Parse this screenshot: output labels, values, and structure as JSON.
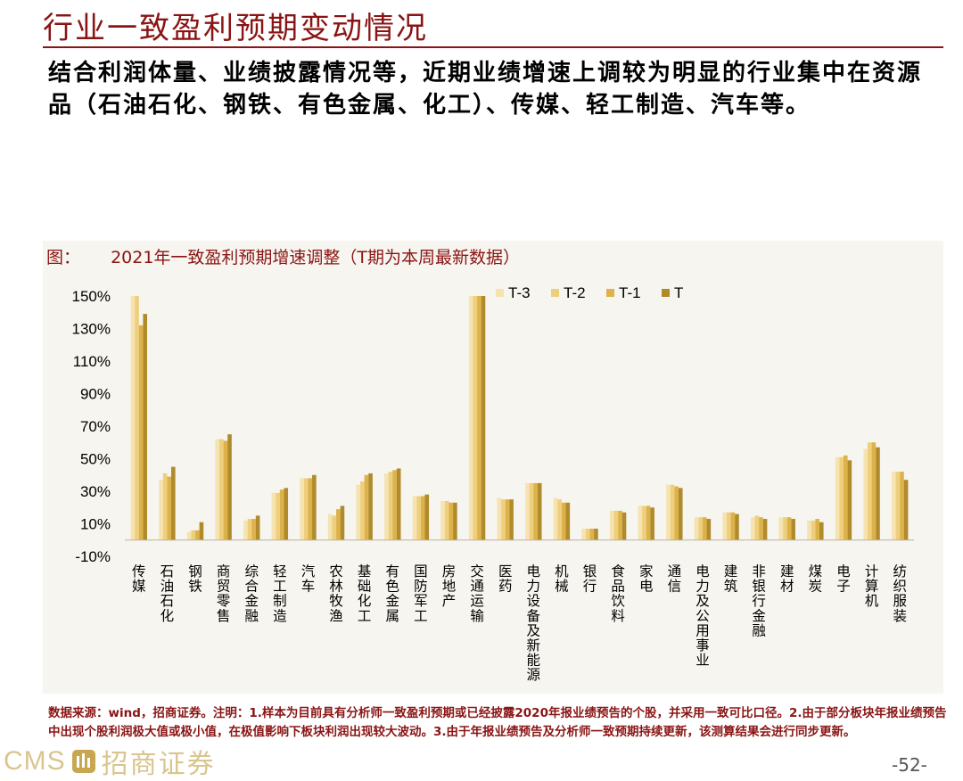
{
  "title": "行业一致盈利预期变动情况",
  "subtitle": "结合利润体量、业绩披露情况等，近期业绩增速上调较为明显的行业集中在资源品（石油石化、钢铁、有色金属、化工）、传媒、轻工制造、汽车等。",
  "chart_caption": {
    "label": "图：",
    "text": "2021年一致盈利预期增速调整（T期为本周最新数据）"
  },
  "colors": {
    "T-3": "#f6e3b0",
    "T-2": "#edcf7e",
    "T-1": "#ddb24a",
    "T": "#b08b2c",
    "title": "#8a1414",
    "panel": "#f7f5ef"
  },
  "chart_data": {
    "type": "bar",
    "ylim": [
      -10,
      150
    ],
    "yticks": [
      "150%",
      "130%",
      "110%",
      "90%",
      "70%",
      "50%",
      "30%",
      "10%",
      "-10%"
    ],
    "ytick_values": [
      150,
      130,
      110,
      90,
      70,
      50,
      30,
      10,
      -10
    ],
    "legend_position": "top-right",
    "categories": [
      "传媒",
      "石油石化",
      "钢铁",
      "商贸零售",
      "综合金融",
      "轻工制造",
      "汽车",
      "农林牧渔",
      "基础化工",
      "有色金属",
      "国防军工",
      "房地产",
      "交通运输",
      "医药",
      "电力设备及新能源",
      "机械",
      "银行",
      "食品饮料",
      "家电",
      "通信",
      "电力及公用事业",
      "建筑",
      "非银行金融",
      "建材",
      "煤炭",
      "电子",
      "计算机",
      "纺织服装"
    ],
    "series": [
      {
        "name": "T-3",
        "values": [
          150,
          37,
          5,
          62,
          12,
          29,
          38,
          16,
          34,
          41,
          27,
          24,
          150,
          26,
          35,
          26,
          7,
          18,
          21,
          34,
          14,
          17,
          14,
          14,
          12,
          51,
          56,
          42
        ]
      },
      {
        "name": "T-2",
        "values": [
          150,
          41,
          6,
          62,
          13,
          29,
          38,
          15,
          36,
          42,
          27,
          24,
          150,
          25,
          35,
          25,
          7,
          18,
          21,
          34,
          14,
          17,
          15,
          14,
          12,
          51,
          60,
          42
        ]
      },
      {
        "name": "T-1",
        "values": [
          132,
          39,
          6,
          61,
          13,
          31,
          38,
          19,
          40,
          43,
          27,
          23,
          150,
          25,
          35,
          23,
          7,
          18,
          21,
          33,
          14,
          17,
          14,
          14,
          13,
          52,
          60,
          42
        ]
      },
      {
        "name": "T",
        "values": [
          139,
          45,
          11,
          65,
          15,
          32,
          40,
          21,
          41,
          44,
          28,
          23,
          150,
          25,
          35,
          23,
          7,
          17,
          20,
          32,
          13,
          16,
          13,
          13,
          11,
          49,
          57,
          37
        ]
      }
    ]
  },
  "notes": "数据来源：wind，招商证券。注明：1.样本为目前具有分析师一致盈利预期或已经披露2020年报业绩预告的个股，并采用一致可比口径。2.由于部分板块年报业绩预告中出现个股利润极大值或极小值，在极值影响下板块利润出现较大波动。3.由于年报业绩预告及分析师一致预期持续更新，该测算结果会进行同步更新。",
  "footer": {
    "logo_en": "CMS",
    "logo_cn": "招商证券",
    "logo_icon": "cms-logo-icon",
    "page_number": "-52-"
  }
}
